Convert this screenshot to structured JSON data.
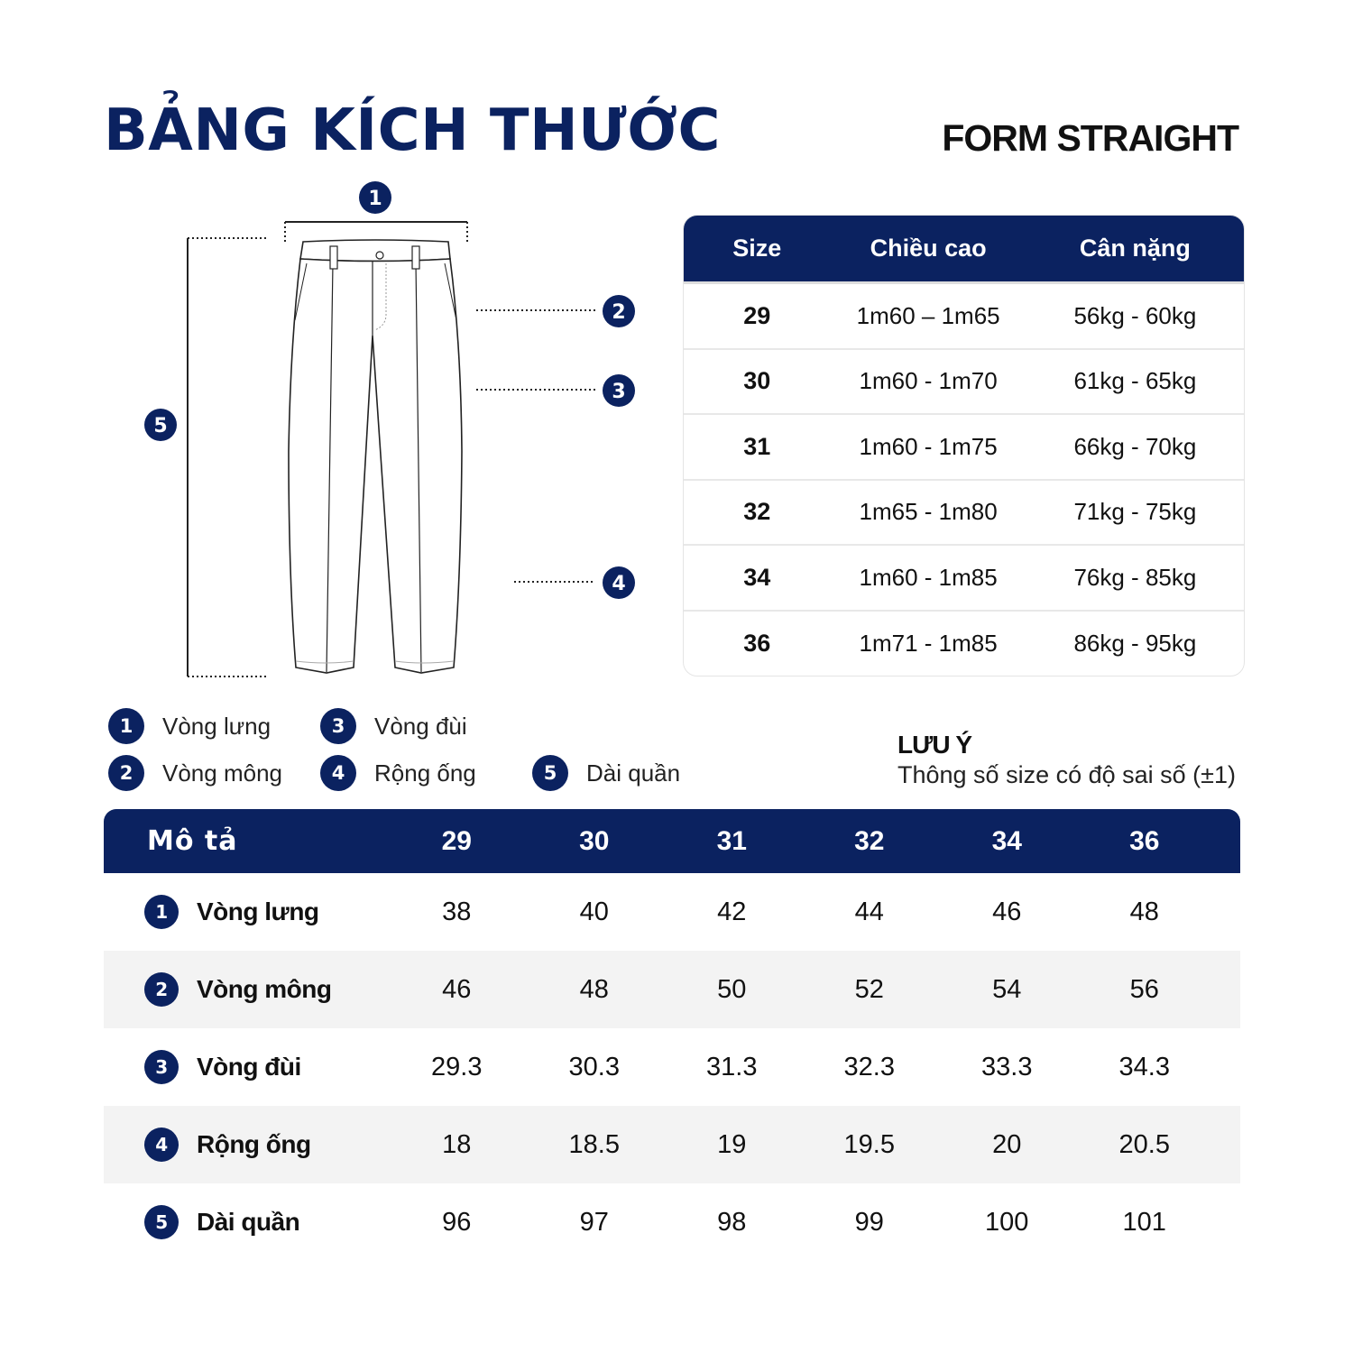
{
  "title": "BẢNG KÍCH THƯỚC",
  "form": "FORM STRAIGHT",
  "accent_color": "#0b2260",
  "diagram": {
    "markers": [
      "1",
      "2",
      "3",
      "4",
      "5"
    ]
  },
  "size_table": {
    "headers": [
      "Size",
      "Chiều cao",
      "Cân nặng"
    ],
    "rows": [
      [
        "29",
        "1m60 – 1m65",
        "56kg - 60kg"
      ],
      [
        "30",
        "1m60 - 1m70",
        "61kg - 65kg"
      ],
      [
        "31",
        "1m60 - 1m75",
        "66kg - 70kg"
      ],
      [
        "32",
        "1m65 - 1m80",
        "71kg - 75kg"
      ],
      [
        "34",
        "1m60 - 1m85",
        "76kg - 85kg"
      ],
      [
        "36",
        "1m71 - 1m85",
        "86kg - 95kg"
      ]
    ]
  },
  "legend": [
    {
      "num": "1",
      "label": "Vòng lưng"
    },
    {
      "num": "2",
      "label": "Vòng mông"
    },
    {
      "num": "3",
      "label": "Vòng đùi"
    },
    {
      "num": "4",
      "label": "Rộng ống"
    },
    {
      "num": "5",
      "label": "Dài quần"
    }
  ],
  "note": {
    "title": "LƯU Ý",
    "text": "Thông số size có độ sai số (±1)"
  },
  "measure_table": {
    "header_label": "Mô tả",
    "sizes": [
      "29",
      "30",
      "31",
      "32",
      "34",
      "36"
    ],
    "rows": [
      {
        "num": "1",
        "label": "Vòng lưng",
        "values": [
          "38",
          "40",
          "42",
          "44",
          "46",
          "48"
        ]
      },
      {
        "num": "2",
        "label": "Vòng mông",
        "values": [
          "46",
          "48",
          "50",
          "52",
          "54",
          "56"
        ]
      },
      {
        "num": "3",
        "label": "Vòng đùi",
        "values": [
          "29.3",
          "30.3",
          "31.3",
          "32.3",
          "33.3",
          "34.3"
        ]
      },
      {
        "num": "4",
        "label": "Rộng ống",
        "values": [
          "18",
          "18.5",
          "19",
          "19.5",
          "20",
          "20.5"
        ]
      },
      {
        "num": "5",
        "label": "Dài quần",
        "values": [
          "96",
          "97",
          "98",
          "99",
          "100",
          "101"
        ]
      }
    ]
  }
}
